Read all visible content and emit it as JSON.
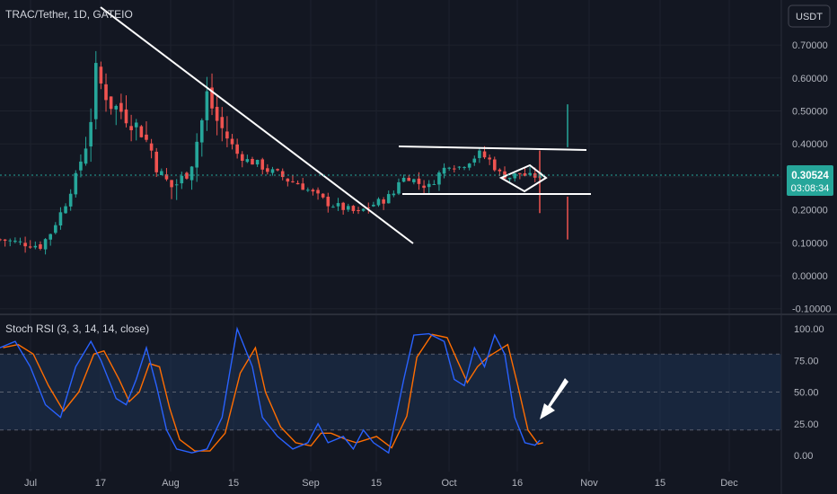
{
  "header": {
    "symbol_title": "TRAC/Tether, 1D, GATEIO",
    "currency_button": "USDT"
  },
  "price_pane": {
    "y_ticks": [
      "0.70000",
      "0.60000",
      "0.50000",
      "0.40000",
      "0.30000",
      "0.20000",
      "0.10000",
      "0.00000",
      "-0.10000"
    ],
    "last_price": "0.30524",
    "countdown": "03:08:34"
  },
  "rsi_pane": {
    "title": "Stoch RSI (3, 3, 14, 14, close)",
    "y_ticks": [
      "100.00",
      "75.00",
      "50.00",
      "25.00",
      "0.00"
    ]
  },
  "x_axis": {
    "ticks": [
      "Jul",
      "17",
      "Aug",
      "15",
      "Sep",
      "15",
      "Oct",
      "16",
      "Nov",
      "15",
      "Dec"
    ]
  },
  "colors": {
    "background": "#131722",
    "up": "#26a69a",
    "down": "#ef5350",
    "k_line": "#2962ff",
    "d_line": "#ff6d00",
    "band_fill": "#1e3a5f",
    "drawing": "#ffffff",
    "price_label": "#26a69a"
  },
  "chart_data": [
    {
      "type": "candlestick",
      "title": "TRAC/Tether, 1D, GATEIO",
      "ylim": [
        -0.1,
        0.75
      ],
      "note_points": [
        {
          "date": "Jul 1",
          "close": 0.11
        },
        {
          "date": "Jul 6",
          "close": 0.09
        },
        {
          "date": "Jul 11",
          "close": 0.25
        },
        {
          "date": "Jul 15",
          "close": 0.42
        },
        {
          "date": "Jul 17",
          "close": 0.66
        },
        {
          "date": "Jul 22",
          "close": 0.55
        },
        {
          "date": "Jul 27",
          "close": 0.46
        },
        {
          "date": "Aug 1",
          "close": 0.27
        },
        {
          "date": "Aug 6",
          "close": 0.42
        },
        {
          "date": "Aug 10",
          "close": 0.56
        },
        {
          "date": "Aug 15",
          "close": 0.42
        },
        {
          "date": "Aug 20",
          "close": 0.38
        },
        {
          "date": "Aug 25",
          "close": 0.34
        },
        {
          "date": "Aug 30",
          "close": 0.3
        },
        {
          "date": "Sep 5",
          "close": 0.25
        },
        {
          "date": "Sep 10",
          "close": 0.2
        },
        {
          "date": "Sep 15",
          "close": 0.23
        },
        {
          "date": "Sep 20",
          "close": 0.3
        },
        {
          "date": "Sep 25",
          "close": 0.32
        },
        {
          "date": "Oct 1",
          "close": 0.35
        },
        {
          "date": "Oct 6",
          "close": 0.37
        },
        {
          "date": "Oct 10",
          "close": 0.31
        },
        {
          "date": "Oct 16",
          "close": 0.28
        },
        {
          "date": "Oct 20",
          "close": 0.305
        }
      ],
      "last_price": 0.30524
    },
    {
      "type": "line",
      "title": "Stoch RSI (3, 3, 14, 14, close)",
      "ylim": [
        0,
        100
      ],
      "bands": [
        20,
        80
      ],
      "series": [
        {
          "values_key": "k"
        },
        {
          "values_key": "d"
        }
      ]
    }
  ]
}
